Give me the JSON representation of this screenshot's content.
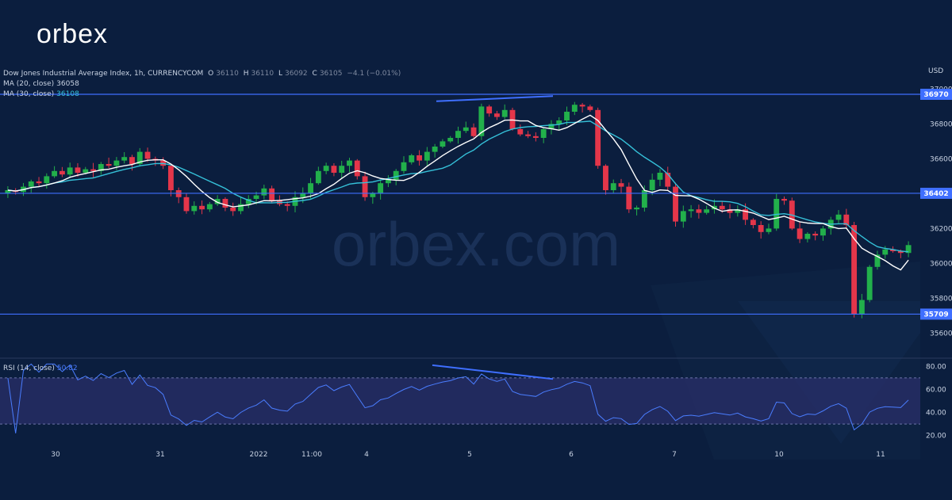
{
  "brand": {
    "name": "orbex",
    "watermark": "orbex.com"
  },
  "header": {
    "title": "Dow Jones Industrial Average Index, 1h, CURRENCYCOM",
    "ohlc": {
      "o_label": "O",
      "o": "36110",
      "h_label": "H",
      "h": "36110",
      "l_label": "L",
      "l": "36092",
      "c_label": "C",
      "c": "36105",
      "change": "−4.1 (−0.01%)"
    },
    "ma20_label": "MA (20, close)",
    "ma20_value": "36058",
    "ma30_label": "MA (30, close)",
    "ma30_value": "36108",
    "rsi_label": "RSI (14, close)",
    "rsi_value": "50.82"
  },
  "colors": {
    "background": "#0b1e3e",
    "up": "#22b04b",
    "down": "#e4364a",
    "ma20": "#ffffff",
    "ma30": "#35c0d8",
    "level": "#3f6fff",
    "rsi": "#4a7dff",
    "rsi_band": "#2a2f6a"
  },
  "chart_data": [
    {
      "type": "candlestick",
      "title": "Dow Jones Industrial Average Index, 1h, CURRENCYCOM",
      "ylabel": "USD",
      "ylim": [
        35520,
        37020
      ],
      "yticks": [
        35600,
        35800,
        36000,
        36200,
        36400,
        36600,
        36800,
        37000
      ],
      "ytick_labels": [
        "35600",
        "35800",
        "36000",
        "36200",
        "36400",
        "36600",
        "36800",
        "37000"
      ],
      "xtick_labels": [
        "30",
        "31",
        "2022",
        "11:00",
        "4",
        "5",
        "6",
        "7",
        "10",
        "11"
      ],
      "levels": [
        36970,
        36402,
        35709
      ],
      "level_labels": [
        "36970",
        "36402",
        "35709"
      ],
      "close_path": [
        36420,
        36410,
        36440,
        36470,
        36460,
        36500,
        36530,
        36510,
        36550,
        36520,
        36540,
        36530,
        36570,
        36560,
        36590,
        36610,
        36570,
        36640,
        36600,
        36590,
        36560,
        36420,
        36380,
        36300,
        36330,
        36310,
        36340,
        36370,
        36320,
        36300,
        36340,
        36370,
        36390,
        36430,
        36360,
        36340,
        36330,
        36380,
        36400,
        36460,
        36530,
        36560,
        36520,
        36560,
        36590,
        36500,
        36380,
        36400,
        36460,
        36480,
        36530,
        36580,
        36620,
        36590,
        36640,
        36670,
        36700,
        36720,
        36760,
        36780,
        36730,
        36900,
        36860,
        36840,
        36880,
        36770,
        36740,
        36730,
        36720,
        36770,
        36800,
        36820,
        36870,
        36910,
        36900,
        36880,
        36560,
        36420,
        36460,
        36440,
        36310,
        36320,
        36420,
        36480,
        36520,
        36440,
        36240,
        36300,
        36310,
        36290,
        36310,
        36330,
        36310,
        36290,
        36310,
        36250,
        36220,
        36180,
        36200,
        36370,
        36360,
        36200,
        36140,
        36170,
        36160,
        36200,
        36250,
        36280,
        36220,
        35710,
        35790,
        35980,
        36050,
        36080,
        36070,
        36060,
        36105
      ],
      "series": [
        {
          "name": "MA (20, close)",
          "last_value": 36058
        },
        {
          "name": "MA (30, close)",
          "last_value": 36108
        }
      ],
      "annotations": [
        {
          "type": "divergence-line",
          "from_y": 36930,
          "to_y": 36960
        }
      ]
    },
    {
      "type": "line",
      "title": "RSI (14, close)",
      "ylim": [
        15,
        85
      ],
      "yticks": [
        20,
        40,
        60,
        80
      ],
      "ytick_labels": [
        "20.00",
        "40.00",
        "60.00",
        "80.00"
      ],
      "band": [
        30,
        70
      ],
      "last_value": 50.82,
      "annotations": [
        {
          "type": "divergence-line",
          "from_y": 81,
          "to_y": 69
        }
      ]
    }
  ]
}
